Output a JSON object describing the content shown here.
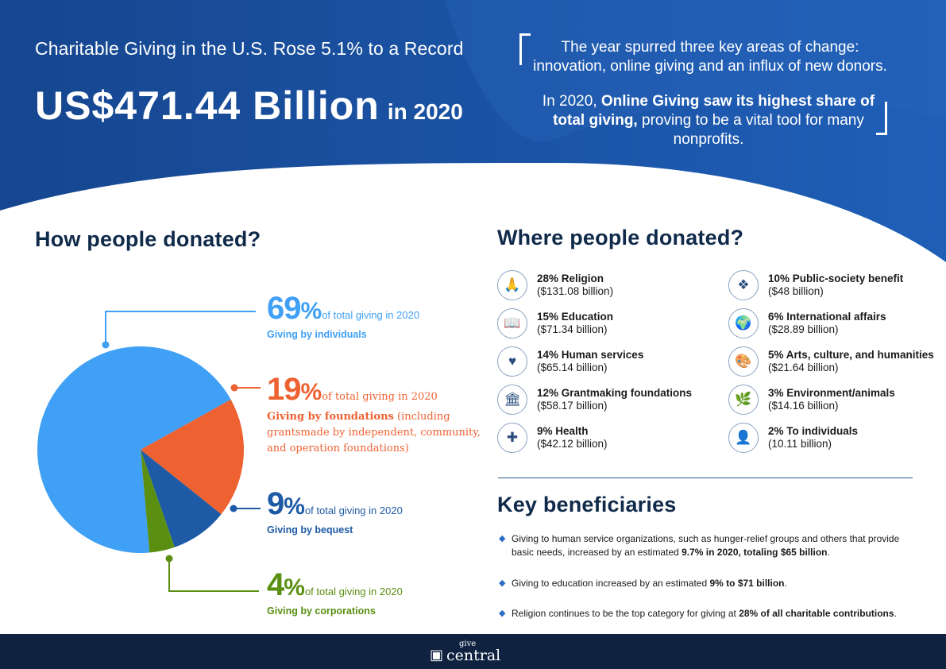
{
  "header": {
    "headline": "Charitable Giving in the U.S. Rose 5.1% to a Record",
    "big_amount": "US$471.44 Billion",
    "big_suffix": "in 2020",
    "quote_line1": "The year spurred three key areas of change: innovation, online giving and an influx of new donors.",
    "quote_line2_prefix": "In 2020, ",
    "quote_line2_bold": "Online Giving saw its highest share of total giving,",
    "quote_line2_suffix": " proving to be a vital tool for many nonprofits."
  },
  "how_section": {
    "title": "How people donated?",
    "callouts": [
      {
        "pct": "69",
        "sign": "%",
        "desc": "of total giving in 2020",
        "sub": "Giving by individuals"
      },
      {
        "pct": "19",
        "sign": "%",
        "desc": "of total giving in 2020",
        "sub_bold": "Giving by foundations",
        "sub_rest": " (including grantsmade by independent, community, and operation foundations)"
      },
      {
        "pct": "9",
        "sign": "%",
        "desc": "of total giving in 2020",
        "sub": "Giving by bequest"
      },
      {
        "pct": "4",
        "sign": "%",
        "desc": "of total giving in 2020",
        "sub": "Giving by corporations"
      }
    ]
  },
  "chart_data": {
    "type": "pie",
    "categories": [
      "Giving by individuals",
      "Giving by foundations",
      "Giving by bequest",
      "Giving by corporations"
    ],
    "values": [
      69,
      19,
      9,
      4
    ],
    "colors": [
      "#3fa0f5",
      "#ee6232",
      "#1e5aa5",
      "#5a8f11"
    ]
  },
  "where_section": {
    "title": "Where people donated?",
    "left": [
      {
        "title": "28% Religion",
        "amount": "($131.08 billion)",
        "icon": "praying-hands-icon",
        "glyph": "🙏"
      },
      {
        "title": "15% Education",
        "amount": "($71.34 billion)",
        "icon": "education-icon",
        "glyph": "📖"
      },
      {
        "title": "14% Human services",
        "amount": "($65.14 billion)",
        "icon": "human-services-icon",
        "glyph": "♥"
      },
      {
        "title": "12% Grantmaking foundations",
        "amount": "($58.17 billion)",
        "icon": "bank-building-icon",
        "glyph": "🏛"
      },
      {
        "title": "9% Health",
        "amount": "($42.12 billion)",
        "icon": "health-icon",
        "glyph": "✚"
      }
    ],
    "right": [
      {
        "title": "10% Public-society benefit",
        "amount": "($48 billion)",
        "icon": "network-icon",
        "glyph": "❖"
      },
      {
        "title": "6% International affairs",
        "amount": "($28.89 billion)",
        "icon": "globe-icon",
        "glyph": "🌍"
      },
      {
        "title": "5% Arts, culture, and humanities",
        "amount": "($21.64 billion)",
        "icon": "palette-icon",
        "glyph": "🎨"
      },
      {
        "title": "3% Environment/animals",
        "amount": "($14.16 billion)",
        "icon": "earth-leaf-icon",
        "glyph": "🌿"
      },
      {
        "title": "2% To individuals",
        "amount": "(10.11 billion)",
        "icon": "person-icon",
        "glyph": "👤"
      }
    ]
  },
  "key_section": {
    "title": "Key beneficiaries",
    "items": [
      {
        "text": "Giving to human service organizations, such as hunger-relief groups and others that provide basic needs, increased by an estimated ",
        "bold": "9.7% in 2020, totaling $65 billion",
        "end": "."
      },
      {
        "text": "Giving to education increased by an estimated ",
        "bold": "9% to $71 billion",
        "end": "."
      },
      {
        "text": "Religion continues to be the top category for giving at ",
        "bold": "28% of all charitable contributions",
        "end": "."
      }
    ]
  },
  "footer": {
    "brand_top": "give",
    "brand_bottom": "central"
  }
}
